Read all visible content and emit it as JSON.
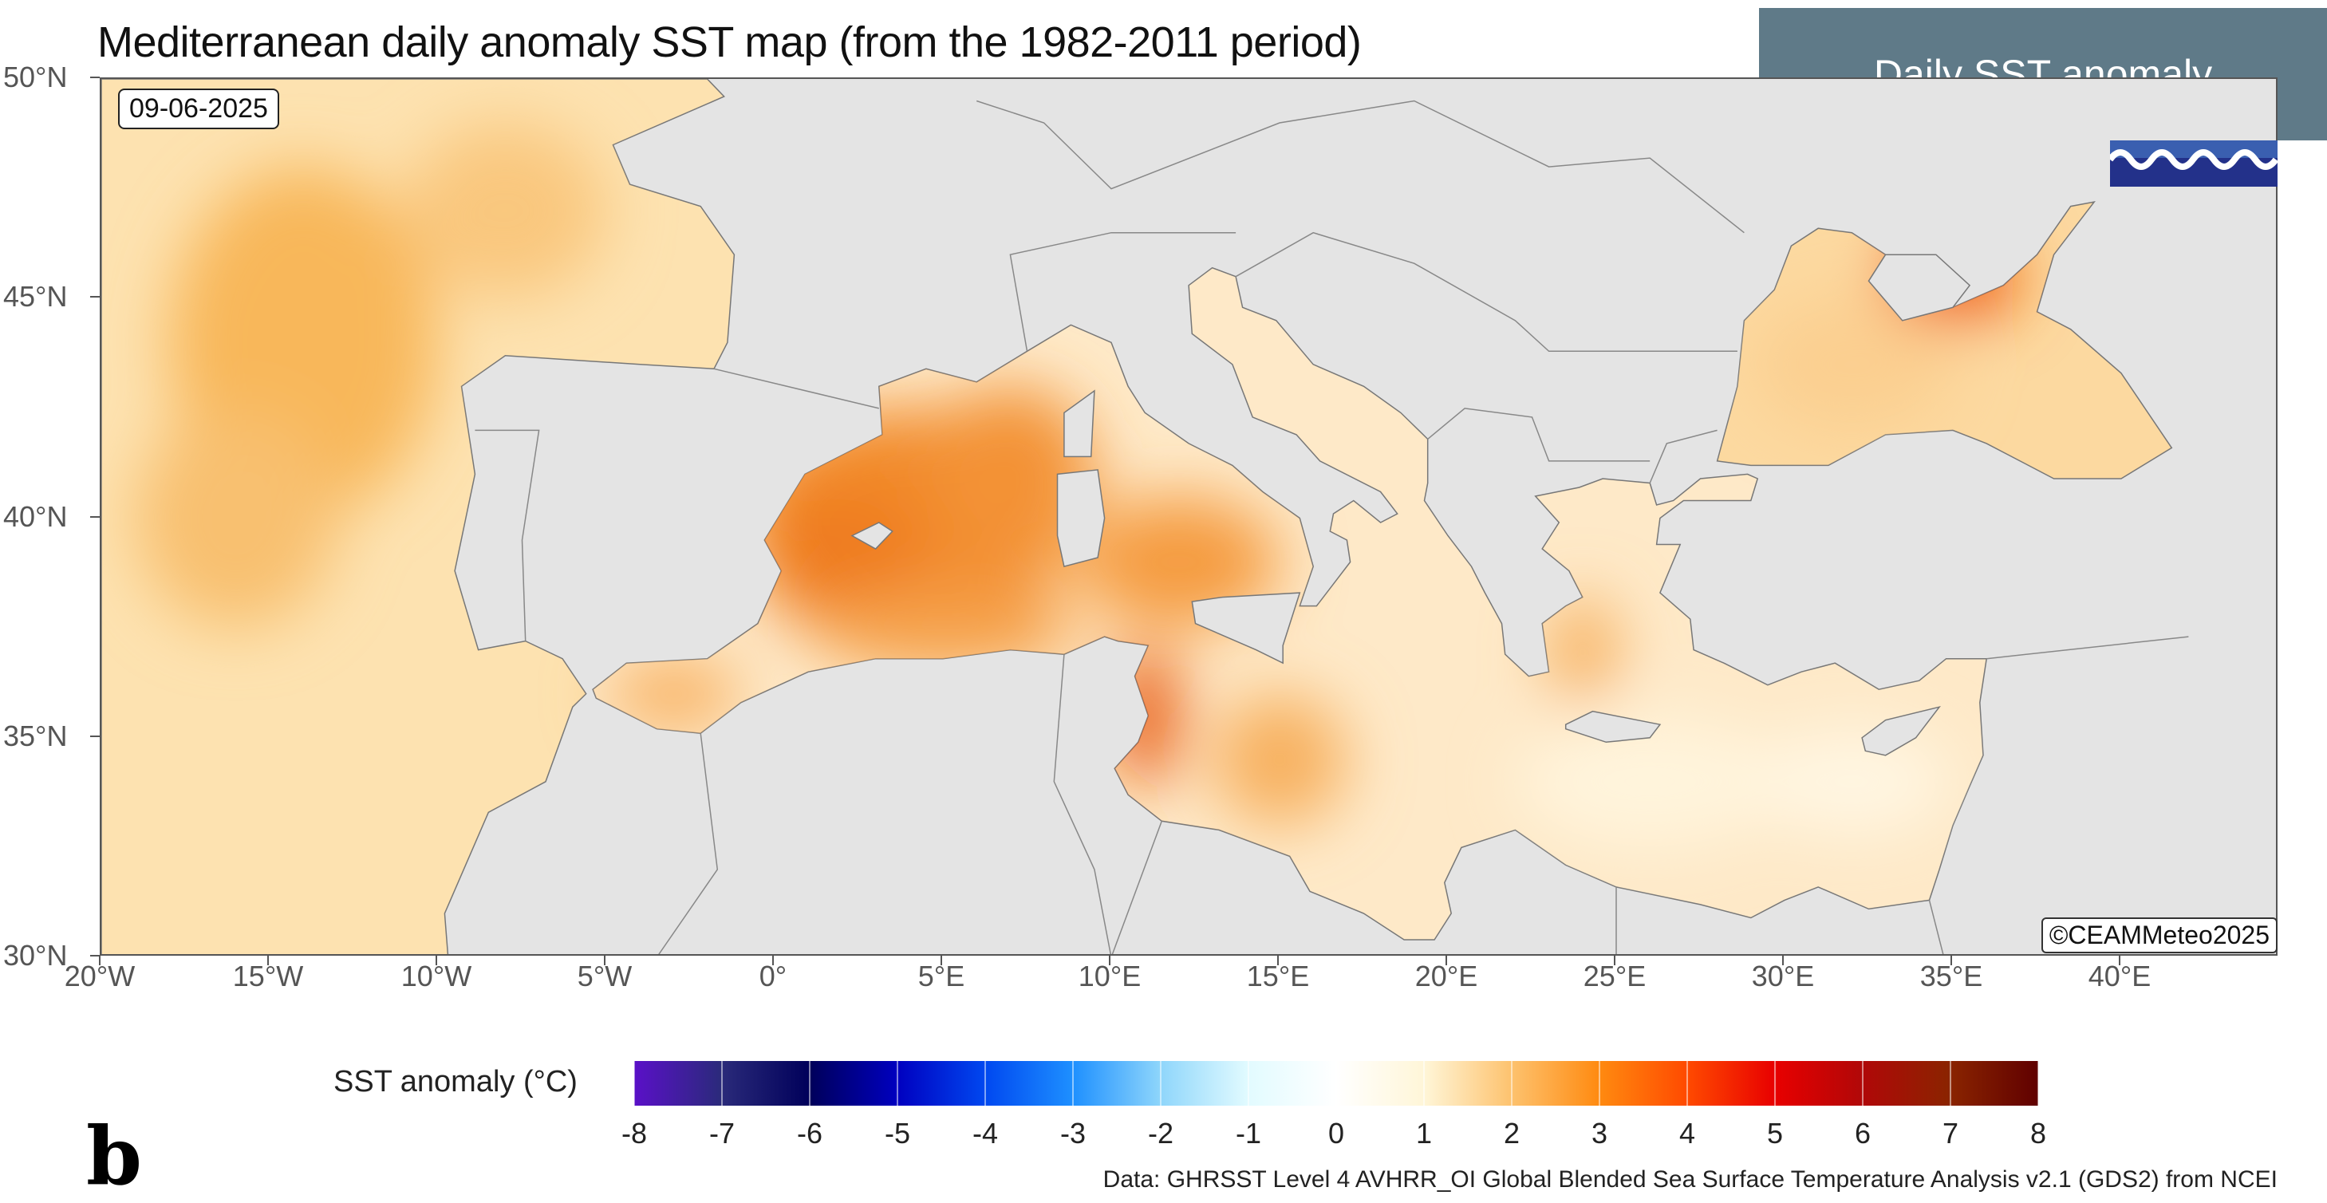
{
  "title": "Mediterranean daily anomaly SST map (from the 1982-2011 period)",
  "header": {
    "label": "Daily SST anomaly",
    "background": "#5f7a88"
  },
  "map": {
    "date": "09-06-2025",
    "copyright": "©CEAMMeteo2025",
    "lat_labels": [
      {
        "value": 50,
        "text": "50°N"
      },
      {
        "value": 45,
        "text": "45°N"
      },
      {
        "value": 40,
        "text": "40°N"
      },
      {
        "value": 35,
        "text": "35°N"
      },
      {
        "value": 30,
        "text": "30°N"
      }
    ],
    "lon_labels": [
      {
        "value": -20,
        "text": "20°W"
      },
      {
        "value": -15,
        "text": "15°W"
      },
      {
        "value": -10,
        "text": "10°W"
      },
      {
        "value": -5,
        "text": "5°W"
      },
      {
        "value": 0,
        "text": "0°"
      },
      {
        "value": 5,
        "text": "5°E"
      },
      {
        "value": 10,
        "text": "10°E"
      },
      {
        "value": 15,
        "text": "15°E"
      },
      {
        "value": 20,
        "text": "20°E"
      },
      {
        "value": 25,
        "text": "25°E"
      },
      {
        "value": 30,
        "text": "30°E"
      },
      {
        "value": 35,
        "text": "35°E"
      },
      {
        "value": 40,
        "text": "40°E"
      }
    ],
    "land_color": "#e4e4e4"
  },
  "colorbar": {
    "title": "SST anomaly (°C)",
    "ticks": [
      "-8",
      "-7",
      "-6",
      "-5",
      "-4",
      "-3",
      "-2",
      "-1",
      "0",
      "1",
      "2",
      "3",
      "4",
      "5",
      "6",
      "7",
      "8"
    ],
    "colors": [
      "#5a10c8",
      "#2a2a7a",
      "#00005a",
      "#0000c0",
      "#0048f0",
      "#1e90ff",
      "#8fd6fb",
      "#e2fbff",
      "#ffffff",
      "#fff6d8",
      "#fdc26e",
      "#ff8a10",
      "#ff4a00",
      "#e80000",
      "#b00808",
      "#8a2400",
      "#600000"
    ]
  },
  "panel_label": "b",
  "credit": "Data: GHRSST Level 4 AVHRR_OI Global Blended Sea Surface Temperature Analysis v2.1 (GDS2) from NCEI"
}
